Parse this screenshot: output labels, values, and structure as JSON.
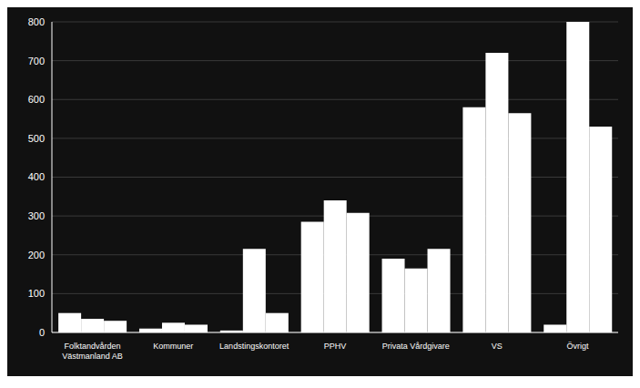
{
  "chart_data": {
    "type": "bar",
    "categories": [
      "Folktandvården\nVästmanland AB",
      "Kommuner",
      "Landstingskontoret",
      "PPHV",
      "Privata Vårdgivare",
      "VS",
      "Övrigt"
    ],
    "series": [
      {
        "color": "#ffffff",
        "values": [
          50,
          10,
          5,
          285,
          190,
          580,
          20
        ]
      },
      {
        "color": "#ffffff",
        "values": [
          35,
          25,
          215,
          340,
          165,
          720,
          800
        ]
      },
      {
        "color": "#ffffff",
        "values": [
          30,
          20,
          50,
          308,
          215,
          565,
          530
        ]
      }
    ],
    "ylim": [
      0,
      800
    ],
    "yticks": [
      0,
      100,
      200,
      300,
      400,
      500,
      600,
      700,
      800
    ],
    "grid": true
  }
}
